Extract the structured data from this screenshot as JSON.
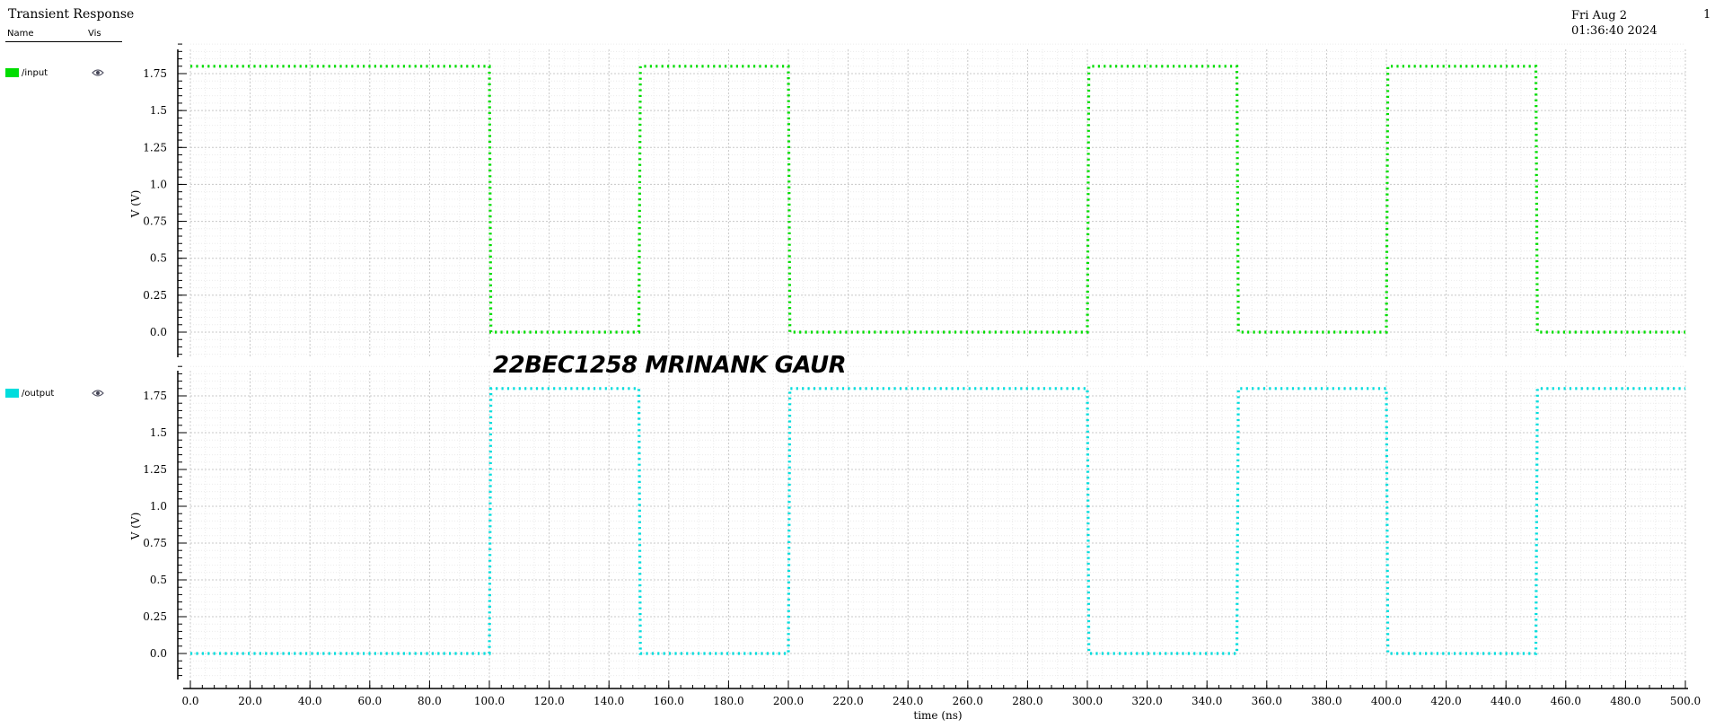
{
  "window": {
    "title": "Transient Response",
    "date": "Fri Aug 2 01:36:40 2024",
    "page": "1"
  },
  "legend": {
    "name_header": "Name",
    "vis_header": "Vis",
    "traces": [
      {
        "label": "/input",
        "color": "#00dd00",
        "icon": "eye-icon"
      },
      {
        "label": "/output",
        "color": "#00dddd",
        "icon": "eye-icon"
      }
    ]
  },
  "annotation": "22BEC1258 MRINANK GAUR",
  "chart_data": [
    {
      "type": "line",
      "series": [
        {
          "name": "/input",
          "color": "#00dd00",
          "x": [
            0,
            100,
            100.5,
            150,
            150.5,
            200,
            200.5,
            300,
            300.5,
            350,
            350.5,
            400,
            400.5,
            450,
            450.5,
            500
          ],
          "y": [
            1.8,
            1.8,
            0,
            0,
            1.8,
            1.8,
            0,
            0,
            1.8,
            1.8,
            0,
            0,
            1.8,
            1.8,
            0,
            0
          ]
        }
      ],
      "xlim": [
        0,
        500
      ],
      "ylim": [
        -0.2,
        1.95
      ],
      "yticks": [
        0.0,
        0.25,
        0.5,
        0.75,
        1.0,
        1.25,
        1.5,
        1.75
      ],
      "ytick_labels": [
        "0.0",
        "0.25",
        "0.5",
        "0.75",
        "1.0",
        "1.25",
        "1.5",
        "1.75"
      ],
      "ylabel": "V (V)",
      "grid": true
    },
    {
      "type": "line",
      "series": [
        {
          "name": "/output",
          "color": "#00dddd",
          "x": [
            0,
            100,
            100.5,
            150,
            150.5,
            200,
            200.5,
            300,
            300.5,
            350,
            350.5,
            400,
            400.5,
            450,
            450.5,
            500
          ],
          "y": [
            0,
            0,
            1.8,
            1.8,
            0,
            0,
            1.8,
            1.8,
            0,
            0,
            1.8,
            1.8,
            0,
            0,
            1.8,
            1.8
          ]
        }
      ],
      "xlim": [
        0,
        500
      ],
      "ylim": [
        -0.2,
        1.95
      ],
      "yticks": [
        0.0,
        0.25,
        0.5,
        0.75,
        1.0,
        1.25,
        1.5,
        1.75
      ],
      "ytick_labels": [
        "0.0",
        "0.25",
        "0.5",
        "0.75",
        "1.0",
        "1.25",
        "1.5",
        "1.75"
      ],
      "ylabel": "V (V)",
      "xticks": [
        0,
        20,
        40,
        60,
        80,
        100,
        120,
        140,
        160,
        180,
        200,
        220,
        240,
        260,
        280,
        300,
        320,
        340,
        360,
        380,
        400,
        420,
        440,
        460,
        480,
        500
      ],
      "xtick_labels": [
        "0.0",
        "20.0",
        "40.0",
        "60.0",
        "80.0",
        "100.0",
        "120.0",
        "140.0",
        "160.0",
        "180.0",
        "200.0",
        "220.0",
        "240.0",
        "260.0",
        "280.0",
        "300.0",
        "320.0",
        "340.0",
        "360.0",
        "380.0",
        "400.0",
        "420.0",
        "440.0",
        "460.0",
        "480.0",
        "500.0"
      ],
      "xlabel": "time (ns)",
      "grid": true
    }
  ]
}
